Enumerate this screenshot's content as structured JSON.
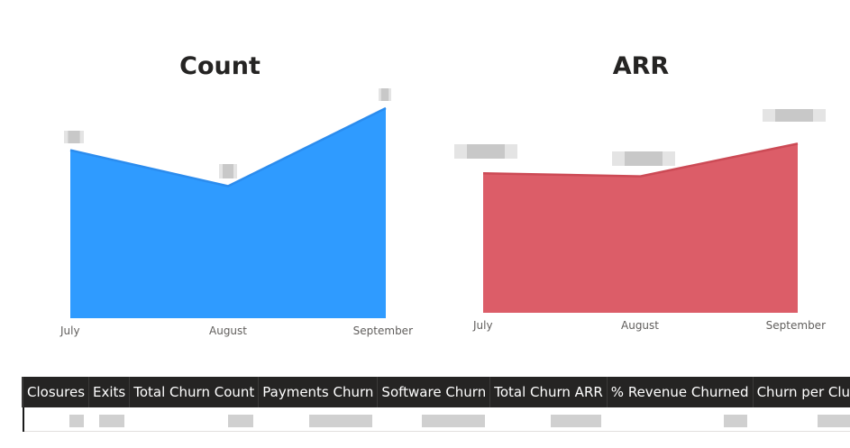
{
  "chart_data": [
    {
      "type": "area",
      "title": "Count",
      "categories": [
        "July",
        "August",
        "September"
      ],
      "values": [
        56,
        44,
        70
      ],
      "ylim": [
        0,
        76
      ],
      "color": "#2f9bff",
      "line_color": "#2b8cee",
      "data_labels": "redacted"
    },
    {
      "type": "area",
      "title": "ARR",
      "categories": [
        "July",
        "August",
        "September"
      ],
      "values": [
        47,
        46,
        57
      ],
      "ylim": [
        0,
        72
      ],
      "color": "#dc5d68",
      "line_color": "#cc4a55",
      "data_labels": "redacted"
    }
  ],
  "table": {
    "columns": [
      "Closures",
      "Exits",
      "Total Churn Count",
      "Payments Churn",
      "Software Churn",
      "Total Churn ARR",
      "% Revenue Churned",
      "Churn per Club"
    ],
    "rows": [
      [
        "",
        "",
        "",
        "",
        "",
        "",
        "",
        ""
      ]
    ]
  }
}
